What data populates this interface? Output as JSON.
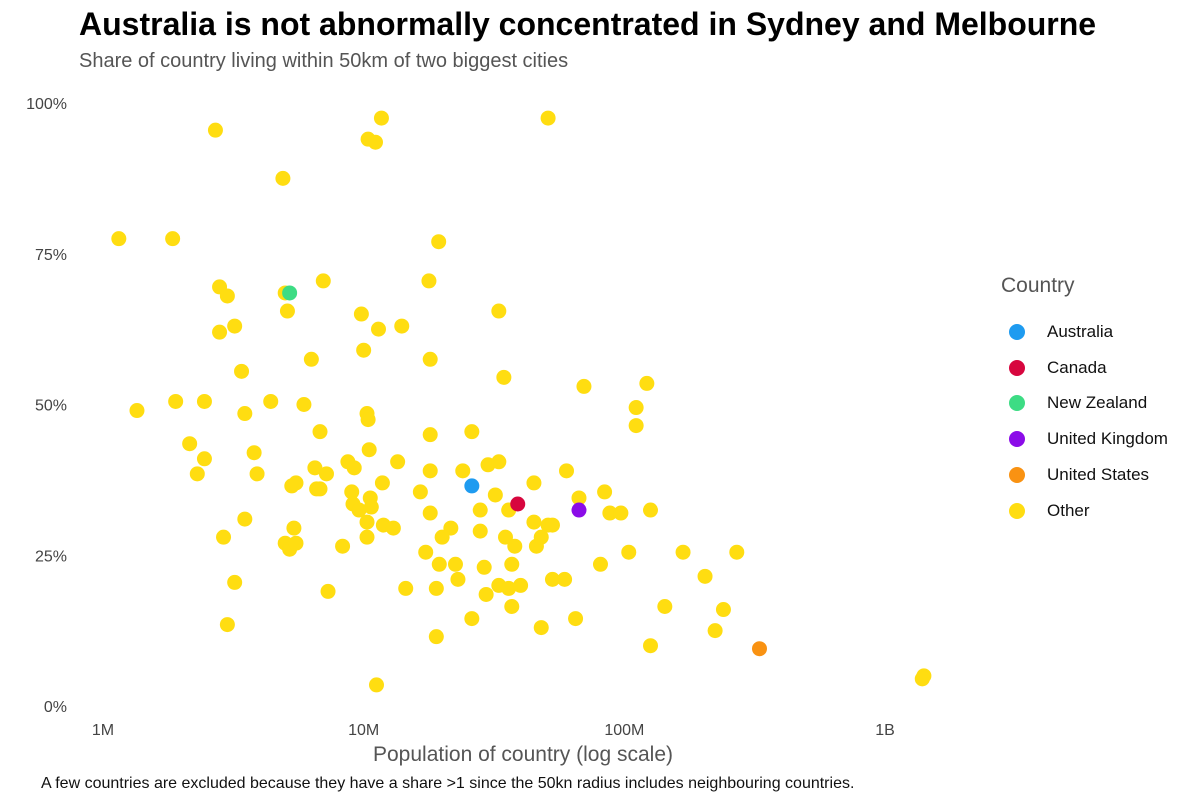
{
  "title": "Australia is not abnormally concentrated in Sydney and Melbourne",
  "subtitle": "Share of country living within 50km of two biggest cities",
  "caption": "A few countries are excluded because they have a share >1 since the 50kn radius includes neighbouring countries.",
  "legend": {
    "title": "Country",
    "items": [
      {
        "label": "Australia",
        "color": "#1E9BF0"
      },
      {
        "label": "Canada",
        "color": "#D7063E"
      },
      {
        "label": "New Zealand",
        "color": "#3DDC84"
      },
      {
        "label": "United Kingdom",
        "color": "#8B0CE8"
      },
      {
        "label": "United States",
        "color": "#F99212"
      },
      {
        "label": "Other",
        "color": "#FFDD11"
      }
    ]
  },
  "chart_data": {
    "type": "scatter",
    "xlabel": "Population of country (log scale)",
    "ylabel": "",
    "x_scale": "log",
    "x_ticks": [
      {
        "value": 1000000,
        "label": "1M"
      },
      {
        "value": 10000000,
        "label": "10M"
      },
      {
        "value": 100000000,
        "label": "100M"
      },
      {
        "value": 1000000000,
        "label": "1B"
      }
    ],
    "y_ticks": [
      {
        "value": 0,
        "label": "0%"
      },
      {
        "value": 0.25,
        "label": "25%"
      },
      {
        "value": 0.5,
        "label": "50%"
      },
      {
        "value": 0.75,
        "label": "75%"
      },
      {
        "value": 1,
        "label": "100%"
      }
    ],
    "xlim": [
      790000,
      1800000000
    ],
    "ylim": [
      0,
      1
    ],
    "grid": false,
    "legend_position": "right",
    "series": [
      {
        "name": "Australia",
        "color": "#1E9BF0",
        "points": [
          [
            26000000,
            0.365
          ]
        ]
      },
      {
        "name": "Canada",
        "color": "#D7063E",
        "points": [
          [
            39000000,
            0.335
          ]
        ]
      },
      {
        "name": "New Zealand",
        "color": "#3DDC84",
        "points": [
          [
            5200000,
            0.685
          ]
        ]
      },
      {
        "name": "United Kingdom",
        "color": "#8B0CE8",
        "points": [
          [
            67000000,
            0.325
          ]
        ]
      },
      {
        "name": "United States",
        "color": "#F99212",
        "points": [
          [
            330000000,
            0.095
          ]
        ]
      },
      {
        "name": "Other",
        "color": "#FFDD11",
        "points": [
          [
            1150000,
            0.775
          ],
          [
            1850000,
            0.775
          ],
          [
            2700000,
            0.955
          ],
          [
            4900000,
            0.875
          ],
          [
            10400000,
            0.94
          ],
          [
            11100000,
            0.935
          ],
          [
            11700000,
            0.975
          ],
          [
            51000000,
            0.975
          ],
          [
            19400000,
            0.77
          ],
          [
            2800000,
            0.695
          ],
          [
            3000000,
            0.68
          ],
          [
            5000000,
            0.685
          ],
          [
            7000000,
            0.705
          ],
          [
            17800000,
            0.705
          ],
          [
            2800000,
            0.62
          ],
          [
            3200000,
            0.63
          ],
          [
            5100000,
            0.655
          ],
          [
            9800000,
            0.65
          ],
          [
            11400000,
            0.625
          ],
          [
            14000000,
            0.63
          ],
          [
            33000000,
            0.655
          ],
          [
            10000000,
            0.59
          ],
          [
            6300000,
            0.575
          ],
          [
            18000000,
            0.575
          ],
          [
            3400000,
            0.555
          ],
          [
            34500000,
            0.545
          ],
          [
            70000000,
            0.53
          ],
          [
            122000000,
            0.535
          ],
          [
            1350000,
            0.49
          ],
          [
            1900000,
            0.505
          ],
          [
            2450000,
            0.505
          ],
          [
            3500000,
            0.485
          ],
          [
            4400000,
            0.505
          ],
          [
            5900000,
            0.5
          ],
          [
            10300000,
            0.485
          ],
          [
            10400000,
            0.475
          ],
          [
            111000000,
            0.495
          ],
          [
            111000000,
            0.465
          ],
          [
            2150000,
            0.435
          ],
          [
            2450000,
            0.41
          ],
          [
            3800000,
            0.42
          ],
          [
            6800000,
            0.455
          ],
          [
            10500000,
            0.425
          ],
          [
            18000000,
            0.45
          ],
          [
            26000000,
            0.455
          ],
          [
            2300000,
            0.385
          ],
          [
            3900000,
            0.385
          ],
          [
            6500000,
            0.395
          ],
          [
            7200000,
            0.385
          ],
          [
            8700000,
            0.405
          ],
          [
            9200000,
            0.395
          ],
          [
            13500000,
            0.405
          ],
          [
            18000000,
            0.39
          ],
          [
            24000000,
            0.39
          ],
          [
            30000000,
            0.4
          ],
          [
            33000000,
            0.405
          ],
          [
            45000000,
            0.37
          ],
          [
            60000000,
            0.39
          ],
          [
            5300000,
            0.365
          ],
          [
            5500000,
            0.37
          ],
          [
            6600000,
            0.36
          ],
          [
            6800000,
            0.36
          ],
          [
            9000000,
            0.355
          ],
          [
            10600000,
            0.345
          ],
          [
            11800000,
            0.37
          ],
          [
            16500000,
            0.355
          ],
          [
            32000000,
            0.35
          ],
          [
            67000000,
            0.345
          ],
          [
            84000000,
            0.355
          ],
          [
            9100000,
            0.335
          ],
          [
            9600000,
            0.325
          ],
          [
            10700000,
            0.33
          ],
          [
            28000000,
            0.325
          ],
          [
            36000000,
            0.325
          ],
          [
            88000000,
            0.32
          ],
          [
            97000000,
            0.32
          ],
          [
            126000000,
            0.325
          ],
          [
            3500000,
            0.31
          ],
          [
            10300000,
            0.305
          ],
          [
            11900000,
            0.3
          ],
          [
            13000000,
            0.295
          ],
          [
            18000000,
            0.32
          ],
          [
            21600000,
            0.295
          ],
          [
            45000000,
            0.305
          ],
          [
            51000000,
            0.3
          ],
          [
            53000000,
            0.3
          ],
          [
            5400000,
            0.295
          ],
          [
            2900000,
            0.28
          ],
          [
            5000000,
            0.27
          ],
          [
            5200000,
            0.26
          ],
          [
            5500000,
            0.27
          ],
          [
            8300000,
            0.265
          ],
          [
            10300000,
            0.28
          ],
          [
            17300000,
            0.255
          ],
          [
            20000000,
            0.28
          ],
          [
            28000000,
            0.29
          ],
          [
            35000000,
            0.28
          ],
          [
            38000000,
            0.265
          ],
          [
            46000000,
            0.265
          ],
          [
            48000000,
            0.28
          ],
          [
            104000000,
            0.255
          ],
          [
            168000000,
            0.255
          ],
          [
            270000000,
            0.255
          ],
          [
            19500000,
            0.235
          ],
          [
            22500000,
            0.235
          ],
          [
            29000000,
            0.23
          ],
          [
            37000000,
            0.235
          ],
          [
            3200000,
            0.205
          ],
          [
            7300000,
            0.19
          ],
          [
            14500000,
            0.195
          ],
          [
            19000000,
            0.195
          ],
          [
            23000000,
            0.21
          ],
          [
            29500000,
            0.185
          ],
          [
            33000000,
            0.2
          ],
          [
            36000000,
            0.195
          ],
          [
            40000000,
            0.2
          ],
          [
            53000000,
            0.21
          ],
          [
            59000000,
            0.21
          ],
          [
            81000000,
            0.235
          ],
          [
            204000000,
            0.215
          ],
          [
            37000000,
            0.165
          ],
          [
            143000000,
            0.165
          ],
          [
            240000000,
            0.16
          ],
          [
            3000000,
            0.135
          ],
          [
            26000000,
            0.145
          ],
          [
            48000000,
            0.13
          ],
          [
            65000000,
            0.145
          ],
          [
            223000000,
            0.125
          ],
          [
            19000000,
            0.115
          ],
          [
            126000000,
            0.1
          ],
          [
            11200000,
            0.035
          ],
          [
            1410000000,
            0.05
          ],
          [
            1390000000,
            0.045
          ]
        ]
      }
    ]
  }
}
